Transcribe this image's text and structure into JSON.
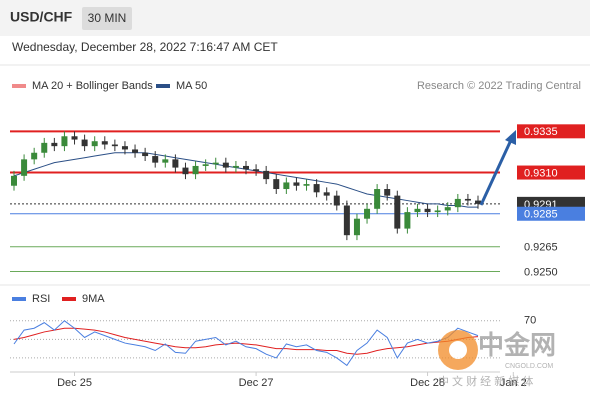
{
  "chart_data": {
    "type": "candlestick",
    "title": "USD/CHF",
    "timeframe": "30 MIN",
    "subtitle": "Wednesday, December 28, 2022 7:16:47 AM CET",
    "legend": [
      "MA 20 + Bollinger Bands",
      "MA 50"
    ],
    "legend_colors": [
      "#f08a8a",
      "#2b4f86"
    ],
    "source": "Research © 2022 Trading Central",
    "up_color": "#3a8a3a",
    "down_color": "#333333",
    "open": [
      0.9302,
      0.9308,
      0.9318,
      0.9322,
      0.9328,
      0.9326,
      0.9332,
      0.933,
      0.9326,
      0.9329,
      0.9327,
      0.9326,
      0.9324,
      0.9322,
      0.932,
      0.9316,
      0.9318,
      0.9313,
      0.9309,
      0.9314,
      0.9315,
      0.9316,
      0.9313,
      0.9314,
      0.9312,
      0.9311,
      0.9306,
      0.93,
      0.9304,
      0.9302,
      0.9303,
      0.9298,
      0.9296,
      0.929,
      0.9272,
      0.9282,
      0.9288,
      0.93,
      0.9296,
      0.9276,
      0.9286,
      0.9288,
      0.9286,
      0.9287,
      0.9289,
      0.9294,
      0.9293
    ],
    "high": [
      0.9311,
      0.9321,
      0.9325,
      0.9331,
      0.9331,
      0.9335,
      0.9335,
      0.9333,
      0.9332,
      0.9332,
      0.933,
      0.9329,
      0.9327,
      0.9325,
      0.9323,
      0.9321,
      0.9321,
      0.9316,
      0.9317,
      0.9318,
      0.9319,
      0.9319,
      0.9317,
      0.9317,
      0.9315,
      0.9314,
      0.9309,
      0.9307,
      0.9307,
      0.9306,
      0.9306,
      0.9301,
      0.9299,
      0.9293,
      0.9285,
      0.9291,
      0.9303,
      0.9303,
      0.9299,
      0.9289,
      0.9291,
      0.9291,
      0.929,
      0.9292,
      0.9297,
      0.9297,
      0.9296
    ],
    "low": [
      0.9299,
      0.9305,
      0.9315,
      0.9319,
      0.9323,
      0.9323,
      0.9327,
      0.9323,
      0.9323,
      0.9324,
      0.9323,
      0.9321,
      0.9319,
      0.9317,
      0.9313,
      0.9313,
      0.931,
      0.9306,
      0.9306,
      0.9311,
      0.9312,
      0.931,
      0.931,
      0.9309,
      0.9308,
      0.9303,
      0.9297,
      0.9297,
      0.9299,
      0.9299,
      0.9295,
      0.9293,
      0.9287,
      0.9269,
      0.9269,
      0.9279,
      0.9285,
      0.9293,
      0.9273,
      0.9273,
      0.9283,
      0.9283,
      0.9283,
      0.9284,
      0.9286,
      0.929,
      0.9288
    ],
    "close": [
      0.9308,
      0.9318,
      0.9322,
      0.9328,
      0.9326,
      0.9332,
      0.933,
      0.9326,
      0.9329,
      0.9327,
      0.9326,
      0.9324,
      0.9322,
      0.932,
      0.9316,
      0.9318,
      0.9313,
      0.9309,
      0.9314,
      0.9315,
      0.9316,
      0.9313,
      0.9314,
      0.9312,
      0.9311,
      0.9306,
      0.93,
      0.9304,
      0.9302,
      0.9303,
      0.9298,
      0.9296,
      0.929,
      0.9272,
      0.9282,
      0.9288,
      0.93,
      0.9296,
      0.9276,
      0.9286,
      0.9288,
      0.9286,
      0.9287,
      0.9289,
      0.9294,
      0.9293,
      0.9291
    ],
    "ma50": [
      0.9308,
      0.931,
      0.9312,
      0.9314,
      0.9316,
      0.9317,
      0.9318,
      0.9319,
      0.932,
      0.9321,
      0.9322,
      0.9322,
      0.9322,
      0.9322,
      0.9321,
      0.932,
      0.9319,
      0.9318,
      0.9317,
      0.9316,
      0.9315,
      0.9314,
      0.9313,
      0.9312,
      0.9311,
      0.931,
      0.9309,
      0.9308,
      0.9307,
      0.9306,
      0.9305,
      0.9304,
      0.9303,
      0.9301,
      0.9299,
      0.9297,
      0.9296,
      0.9295,
      0.9294,
      0.9293,
      0.9292,
      0.9291,
      0.9291,
      0.929,
      0.929,
      0.9289,
      0.9289
    ],
    "ylim": [
      0.9243,
      0.9354
    ],
    "levels": [
      {
        "value": 0.9335,
        "label": "0.9335",
        "color": "#e02020",
        "boxed": true
      },
      {
        "value": 0.931,
        "label": "0.9310",
        "color": "#e02020",
        "boxed": true
      },
      {
        "value": 0.9291,
        "label": "0.9291",
        "color": "#333333",
        "boxed": true
      },
      {
        "value": 0.9285,
        "label": "0.9285",
        "color": "#4a7fe0",
        "boxed": true
      },
      {
        "value": 0.9265,
        "label": "0.9265",
        "color": "#6aaa5a",
        "boxed": false
      },
      {
        "value": 0.925,
        "label": "0.9250",
        "color": "#6aaa5a",
        "boxed": false
      }
    ],
    "xticks": [
      {
        "value": 6,
        "label": "Dec 25"
      },
      {
        "value": 24,
        "label": "Dec 27"
      },
      {
        "value": 41,
        "label": "Dec 28"
      },
      {
        "value": 49.5,
        "label": "Jan 2"
      }
    ],
    "rsi": {
      "legend": [
        "RSI",
        "9MA"
      ],
      "colors": [
        "#4a7fe0",
        "#e02020"
      ],
      "rsi": [
        45,
        60,
        62,
        68,
        60,
        70,
        62,
        52,
        58,
        54,
        50,
        46,
        44,
        42,
        38,
        45,
        36,
        35,
        48,
        50,
        52,
        44,
        48,
        42,
        40,
        34,
        30,
        45,
        42,
        44,
        38,
        36,
        30,
        22,
        38,
        46,
        60,
        52,
        30,
        46,
        50,
        46,
        48,
        52,
        62,
        58,
        54
      ],
      "ma9": [
        50,
        52,
        55,
        58,
        60,
        62,
        62,
        61,
        60,
        58,
        55,
        52,
        50,
        48,
        46,
        44,
        42,
        41,
        41,
        42,
        44,
        45,
        46,
        45,
        44,
        42,
        40,
        40,
        39,
        39,
        39,
        38,
        38,
        35,
        34,
        35,
        38,
        40,
        41,
        42,
        44,
        46,
        47,
        48,
        50,
        52,
        53
      ],
      "ylim": [
        17,
        87
      ],
      "yticks": [
        70
      ],
      "levels": [
        50,
        30
      ]
    },
    "watermark": {
      "name": "中金网",
      "site": "CNGOLD.COM",
      "tagline": "中 文 财 经 新 媒 体"
    }
  }
}
